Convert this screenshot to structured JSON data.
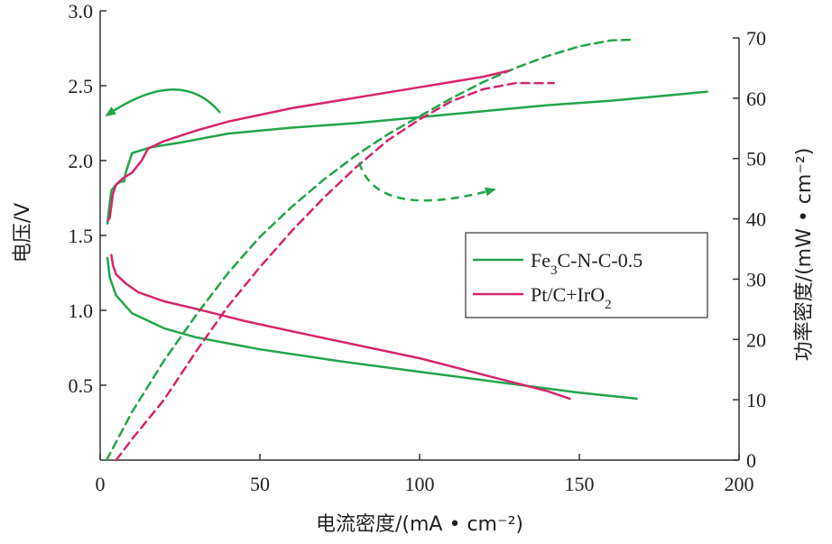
{
  "chart_data": {
    "type": "line",
    "xlabel": "电流密度/(mA • cm⁻²)",
    "ylabel_left": "电压/V",
    "ylabel_right": "功率密度/(mW • cm⁻²)",
    "xlim": [
      0,
      200
    ],
    "ylim_left": [
      0.0,
      3.0
    ],
    "ylim_right": [
      0,
      70
    ],
    "x_ticks": [
      "0",
      "50",
      "100",
      "150",
      "200"
    ],
    "y_left_ticks": [
      "0.5",
      "1.0",
      "1.5",
      "2.0",
      "2.5",
      "3.0"
    ],
    "y_right_ticks": [
      "0",
      "10",
      "20",
      "30",
      "40",
      "50",
      "60",
      "70"
    ],
    "grid": false,
    "legend_position": "center-right",
    "series": [
      {
        "name": "Fe3C-N-C-0.5",
        "legend": {
          "main": "Fe",
          "sub1": "3",
          "rest": "C-N-C-0.5"
        },
        "color": "#22a54a",
        "curve": "charge",
        "axis": "left",
        "style": "solid",
        "x": [
          2.3,
          3.0,
          3.5,
          5.0,
          6.5,
          7.5,
          8.0,
          10.0,
          13.0,
          16.0,
          25.0,
          40.0,
          60.0,
          80.0,
          100.0,
          120.0,
          140.0,
          160.0,
          180.0,
          190.0
        ],
        "y": [
          1.58,
          1.72,
          1.8,
          1.84,
          1.86,
          1.86,
          1.92,
          2.05,
          2.07,
          2.09,
          2.12,
          2.18,
          2.22,
          2.25,
          2.29,
          2.33,
          2.37,
          2.4,
          2.44,
          2.46
        ]
      },
      {
        "name": "Fe3C-N-C-0.5",
        "color": "#22a54a",
        "curve": "discharge",
        "axis": "left",
        "style": "solid",
        "x": [
          2.3,
          3.0,
          5.0,
          10.0,
          20.0,
          30.0,
          50.0,
          75.0,
          100.0,
          125.0,
          150.0,
          168.0
        ],
        "y": [
          1.35,
          1.22,
          1.1,
          0.98,
          0.88,
          0.82,
          0.74,
          0.66,
          0.59,
          0.52,
          0.45,
          0.41
        ]
      },
      {
        "name": "Fe3C-N-C-0.5",
        "color": "#22a54a",
        "curve": "power density",
        "axis": "right",
        "style": "dashed",
        "x": [
          2.0,
          10.0,
          20.0,
          30.0,
          40.0,
          50.0,
          60.0,
          70.0,
          80.0,
          90.0,
          100.0,
          110.0,
          120.0,
          130.0,
          140.0,
          150.0,
          160.0,
          167.0
        ],
        "y": [
          0.0,
          8.0,
          16.5,
          24.0,
          31.0,
          37.0,
          42.0,
          46.5,
          50.5,
          54.0,
          57.0,
          60.0,
          62.7,
          65.0,
          67.0,
          68.6,
          69.6,
          69.7
        ]
      },
      {
        "name": "Pt/C+IrO2",
        "legend": {
          "main": "Pt/C+IrO",
          "sub1": "2",
          "rest": ""
        },
        "color": "#d6246e",
        "curve": "charge",
        "axis": "left",
        "style": "solid",
        "x": [
          2.5,
          3.0,
          4.0,
          5.0,
          7.0,
          10.0,
          13.0,
          15.0,
          20.0,
          30.0,
          40.0,
          60.0,
          80.0,
          100.0,
          120.0,
          128.0
        ],
        "y": [
          1.6,
          1.62,
          1.78,
          1.84,
          1.88,
          1.92,
          2.0,
          2.08,
          2.13,
          2.2,
          2.26,
          2.35,
          2.42,
          2.49,
          2.56,
          2.6
        ]
      },
      {
        "name": "Pt/C+IrO2",
        "color": "#d6246e",
        "curve": "discharge",
        "axis": "left",
        "style": "solid",
        "x": [
          3.5,
          4.0,
          5.0,
          8.0,
          12.0,
          20.0,
          30.0,
          45.0,
          60.0,
          80.0,
          100.0,
          120.0,
          140.0,
          147.0
        ],
        "y": [
          1.37,
          1.3,
          1.24,
          1.18,
          1.12,
          1.06,
          1.01,
          0.93,
          0.86,
          0.77,
          0.68,
          0.57,
          0.46,
          0.41
        ]
      },
      {
        "name": "Pt/C+IrO2",
        "color": "#d6246e",
        "curve": "power density",
        "axis": "right",
        "style": "dashed",
        "x": [
          5.0,
          10.0,
          20.0,
          30.0,
          40.0,
          50.0,
          60.0,
          70.0,
          80.0,
          90.0,
          100.0,
          110.0,
          120.0,
          130.0,
          142.0
        ],
        "y": [
          0.0,
          3.5,
          10.0,
          18.0,
          25.5,
          32.0,
          38.0,
          43.5,
          48.5,
          53.0,
          56.5,
          59.5,
          61.5,
          62.5,
          62.5
        ]
      }
    ],
    "annotations": [
      {
        "type": "arrow",
        "color": "#22a54a",
        "style": "solid",
        "meaning": "points to left voltage axis"
      },
      {
        "type": "arrow",
        "color": "#22a54a",
        "style": "dashed",
        "meaning": "points to right power-density axis"
      }
    ]
  }
}
